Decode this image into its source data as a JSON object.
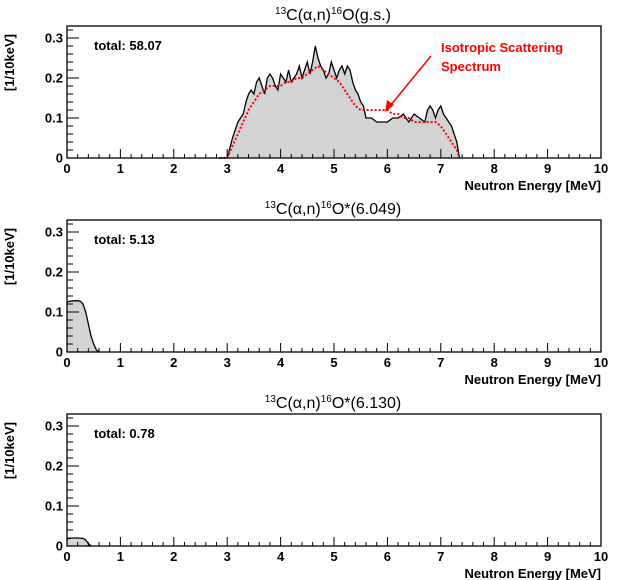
{
  "chart_data": [
    {
      "type": "area",
      "title": {
        "pre": "13",
        "a": "C(",
        "alpha": "α",
        "b": ",n)",
        "mid": "16",
        "c": "O(g.s.)"
      },
      "xlabel": "Neutron Energy [MeV]",
      "ylabel": "[1/10keV]",
      "xlim": [
        0,
        10
      ],
      "ylim": [
        0,
        0.33
      ],
      "xticks": [
        "0",
        "1",
        "2",
        "3",
        "4",
        "5",
        "6",
        "7",
        "8",
        "9",
        "10"
      ],
      "yticks": [
        "0",
        "0.1",
        "0.2",
        "0.3"
      ],
      "annotation": "total: 58.07",
      "series": [
        {
          "color": "#000000",
          "fill": "#d3d3d3",
          "x": [
            2.85,
            3.0,
            3.1,
            3.2,
            3.3,
            3.35,
            3.4,
            3.45,
            3.5,
            3.55,
            3.6,
            3.65,
            3.7,
            3.75,
            3.8,
            3.85,
            3.9,
            3.95,
            4.0,
            4.05,
            4.1,
            4.15,
            4.2,
            4.25,
            4.3,
            4.35,
            4.4,
            4.45,
            4.5,
            4.55,
            4.6,
            4.65,
            4.7,
            4.75,
            4.8,
            4.85,
            4.9,
            4.95,
            5.0,
            5.05,
            5.1,
            5.15,
            5.2,
            5.25,
            5.3,
            5.35,
            5.4,
            5.45,
            5.5,
            5.55,
            5.6,
            5.7,
            5.8,
            5.9,
            6.0,
            6.1,
            6.2,
            6.3,
            6.4,
            6.5,
            6.6,
            6.7,
            6.75,
            6.8,
            6.85,
            6.9,
            6.95,
            7.0,
            7.05,
            7.1,
            7.2,
            7.3,
            7.35
          ],
          "values": [
            0,
            0,
            0.05,
            0.09,
            0.11,
            0.14,
            0.16,
            0.17,
            0.16,
            0.19,
            0.2,
            0.18,
            0.16,
            0.2,
            0.21,
            0.2,
            0.18,
            0.17,
            0.21,
            0.2,
            0.19,
            0.22,
            0.19,
            0.2,
            0.21,
            0.23,
            0.2,
            0.22,
            0.24,
            0.21,
            0.24,
            0.28,
            0.25,
            0.23,
            0.22,
            0.2,
            0.21,
            0.24,
            0.22,
            0.2,
            0.22,
            0.23,
            0.21,
            0.23,
            0.22,
            0.19,
            0.17,
            0.16,
            0.14,
            0.13,
            0.1,
            0.1,
            0.09,
            0.09,
            0.09,
            0.1,
            0.1,
            0.11,
            0.09,
            0.11,
            0.1,
            0.09,
            0.12,
            0.13,
            0.12,
            0.1,
            0.12,
            0.13,
            0.11,
            0.1,
            0.08,
            0.04,
            0
          ]
        },
        {
          "name": "Isotropic Scattering Spectrum",
          "color": "#ff0000",
          "dashed": true,
          "x": [
            2.85,
            3.0,
            3.1,
            3.2,
            3.3,
            3.4,
            3.5,
            3.6,
            3.7,
            3.8,
            3.9,
            4.0,
            4.1,
            4.2,
            4.3,
            4.4,
            4.5,
            4.6,
            4.7,
            4.8,
            4.9,
            5.0,
            5.1,
            5.2,
            5.3,
            5.4,
            5.5,
            5.6,
            5.7,
            5.8,
            5.9,
            6.0,
            6.1,
            6.2,
            6.3,
            6.4,
            6.5,
            6.6,
            6.7,
            6.8,
            6.9,
            7.0,
            7.1,
            7.2,
            7.3,
            7.35
          ],
          "values": [
            0,
            0,
            0.03,
            0.06,
            0.09,
            0.12,
            0.14,
            0.16,
            0.17,
            0.18,
            0.18,
            0.18,
            0.19,
            0.19,
            0.2,
            0.2,
            0.21,
            0.22,
            0.23,
            0.22,
            0.21,
            0.2,
            0.19,
            0.17,
            0.15,
            0.13,
            0.12,
            0.12,
            0.12,
            0.12,
            0.12,
            0.12,
            0.11,
            0.11,
            0.1,
            0.1,
            0.09,
            0.09,
            0.09,
            0.09,
            0.09,
            0.08,
            0.06,
            0.04,
            0.02,
            0
          ]
        }
      ],
      "arrow_label": [
        "Isotropic Scattering",
        "Spectrum"
      ]
    },
    {
      "type": "area",
      "title": {
        "pre": "13",
        "a": "C(",
        "alpha": "α",
        "b": ",n)",
        "mid": "16",
        "c": "O*(6.049)"
      },
      "xlabel": "Neutron Energy [MeV]",
      "ylabel": "[1/10keV]",
      "xlim": [
        0,
        10
      ],
      "ylim": [
        0,
        0.33
      ],
      "xticks": [
        "0",
        "1",
        "2",
        "3",
        "4",
        "5",
        "6",
        "7",
        "8",
        "9",
        "10"
      ],
      "yticks": [
        "0",
        "0.1",
        "0.2",
        "0.3"
      ],
      "annotation": "total: 5.13",
      "series": [
        {
          "color": "#000000",
          "fill": "#d3d3d3",
          "x": [
            0.0,
            0.05,
            0.1,
            0.2,
            0.25,
            0.3,
            0.35,
            0.4,
            0.45,
            0.5,
            0.55,
            0.6
          ],
          "values": [
            0.125,
            0.127,
            0.128,
            0.128,
            0.127,
            0.12,
            0.1,
            0.07,
            0.04,
            0.02,
            0.005,
            0
          ]
        }
      ]
    },
    {
      "type": "area",
      "title": {
        "pre": "13",
        "a": "C(",
        "alpha": "α",
        "b": ",n)",
        "mid": "16",
        "c": "O*(6.130)"
      },
      "xlabel": "Neutron Energy [MeV]",
      "ylabel": "[1/10keV]",
      "xlim": [
        0,
        10
      ],
      "ylim": [
        0,
        0.33
      ],
      "xticks": [
        "0",
        "1",
        "2",
        "3",
        "4",
        "5",
        "6",
        "7",
        "8",
        "9",
        "10"
      ],
      "yticks": [
        "0",
        "0.1",
        "0.2",
        "0.3"
      ],
      "annotation": "total: 0.78",
      "series": [
        {
          "color": "#000000",
          "fill": "#d3d3d3",
          "x": [
            0.0,
            0.05,
            0.1,
            0.2,
            0.3,
            0.35,
            0.4,
            0.45
          ],
          "values": [
            0.018,
            0.019,
            0.02,
            0.02,
            0.019,
            0.015,
            0.006,
            0
          ]
        }
      ]
    }
  ]
}
